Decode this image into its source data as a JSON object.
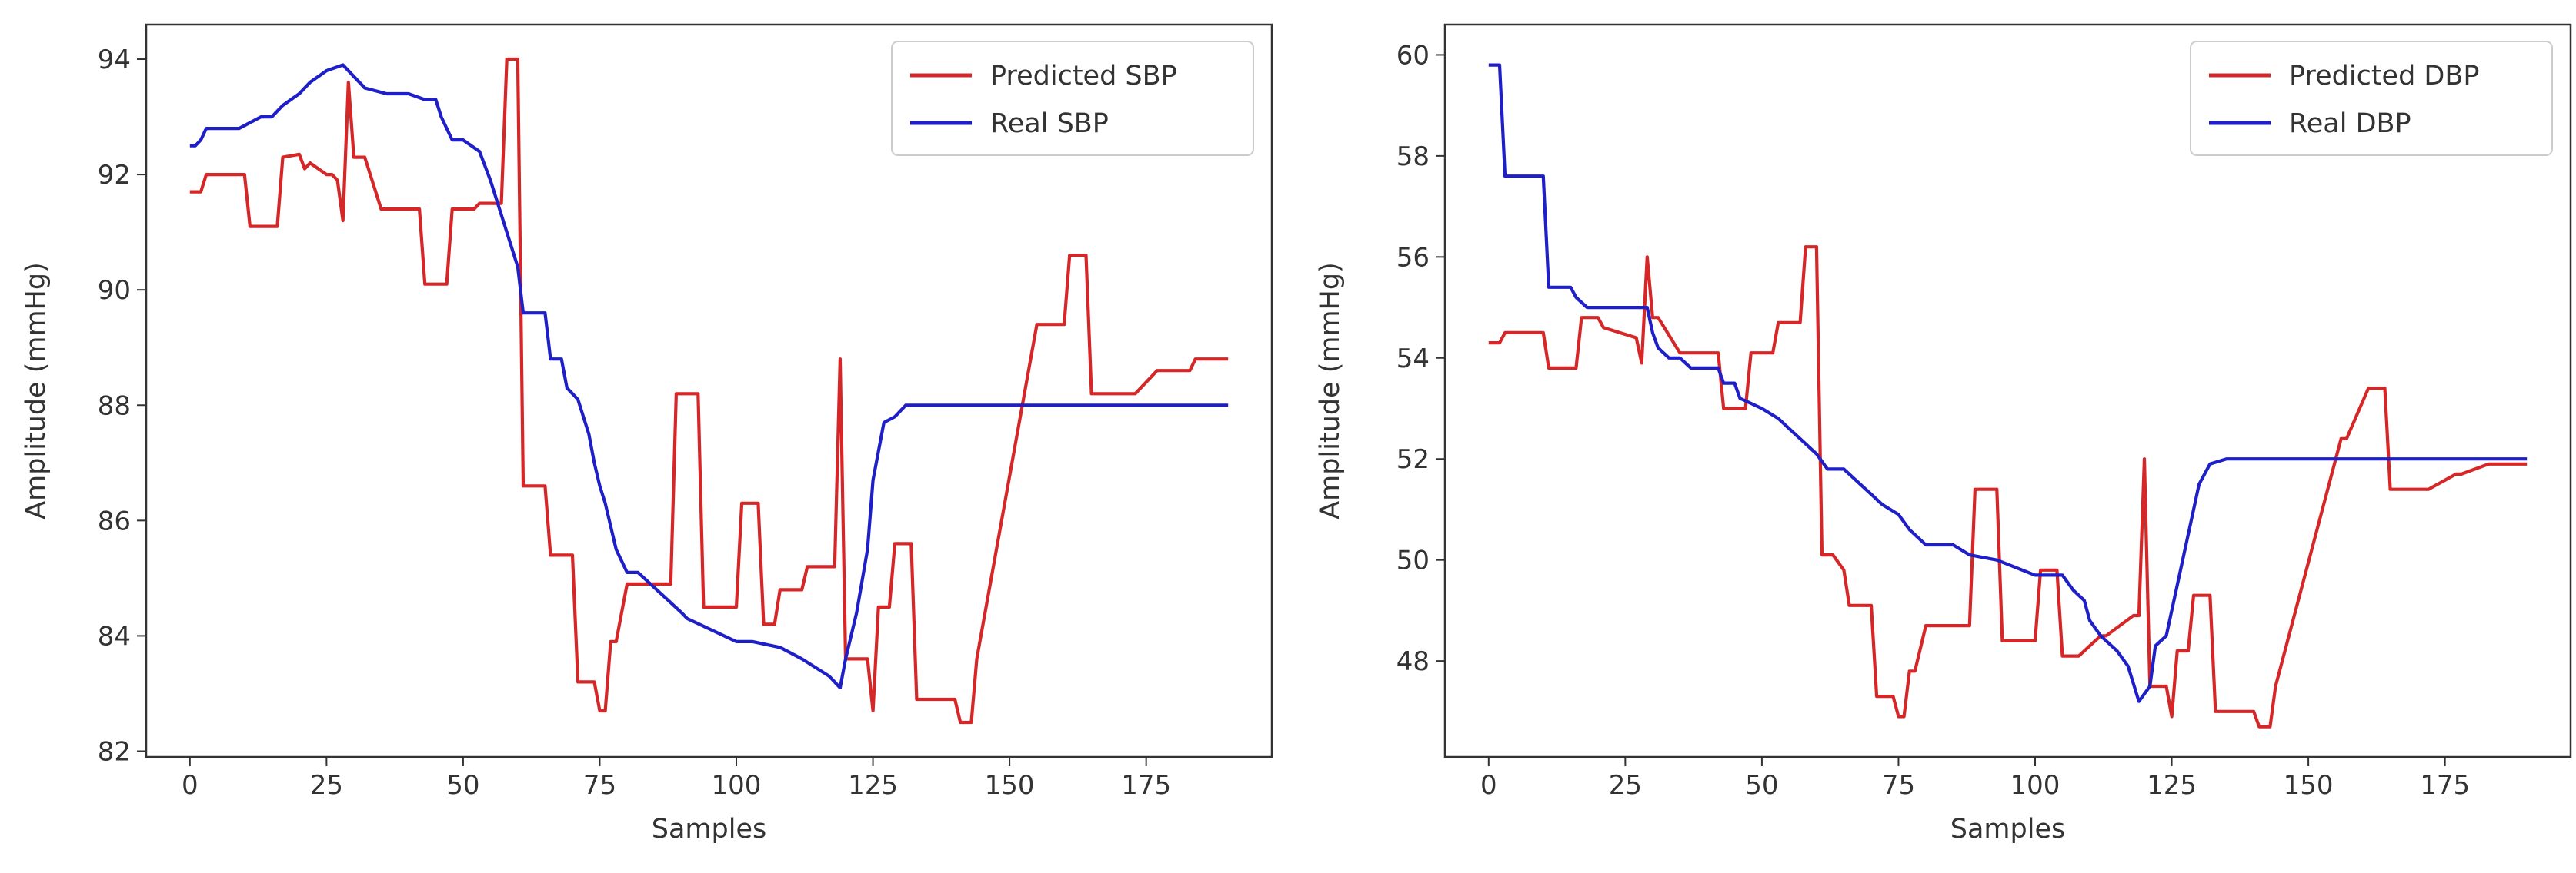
{
  "chart_data": [
    {
      "type": "line",
      "title": "",
      "xlabel": "Samples",
      "ylabel": "Amplitude (mmHg)",
      "xlim": [
        -8,
        198
      ],
      "ylim": [
        81.9,
        94.6
      ],
      "xticks": [
        0,
        25,
        50,
        75,
        100,
        125,
        150,
        175
      ],
      "yticks": [
        82,
        84,
        86,
        88,
        90,
        92,
        94
      ],
      "legend_position": "top-right",
      "series": [
        {
          "name": "Predicted SBP",
          "color": "#d62728",
          "x": [
            0,
            2,
            3,
            10,
            11,
            16,
            17,
            20,
            21,
            22,
            25,
            26,
            27,
            28,
            29,
            30,
            31,
            32,
            35,
            36,
            42,
            43,
            47,
            48,
            52,
            53,
            57,
            58,
            60,
            61,
            62,
            65,
            66,
            70,
            71,
            74,
            75,
            76,
            77,
            78,
            80,
            81,
            88,
            89,
            93,
            94,
            100,
            101,
            104,
            105,
            107,
            108,
            112,
            113,
            118,
            119,
            120,
            121,
            124,
            125,
            126,
            128,
            129,
            132,
            133,
            140,
            141,
            143,
            144,
            155,
            156,
            160,
            161,
            164,
            165,
            172,
            173,
            177,
            178,
            183,
            184,
            190
          ],
          "y": [
            91.7,
            91.7,
            92.0,
            92.0,
            91.1,
            91.1,
            92.3,
            92.35,
            92.1,
            92.2,
            92.0,
            92.0,
            91.9,
            91.2,
            93.6,
            92.3,
            92.3,
            92.3,
            91.4,
            91.4,
            91.4,
            90.1,
            90.1,
            91.4,
            91.4,
            91.5,
            91.5,
            94.0,
            94.0,
            86.6,
            86.6,
            86.6,
            85.4,
            85.4,
            83.2,
            83.2,
            82.7,
            82.7,
            83.9,
            83.9,
            84.9,
            84.9,
            84.9,
            88.2,
            88.2,
            84.5,
            84.5,
            86.3,
            86.3,
            84.2,
            84.2,
            84.8,
            84.8,
            85.2,
            85.2,
            88.8,
            83.6,
            83.6,
            83.6,
            82.7,
            84.5,
            84.5,
            85.6,
            85.6,
            82.9,
            82.9,
            82.5,
            82.5,
            83.6,
            89.4,
            89.4,
            89.4,
            90.6,
            90.6,
            88.2,
            88.2,
            88.2,
            88.6,
            88.6,
            88.6,
            88.8,
            88.8
          ]
        },
        {
          "name": "Real SBP",
          "color": "#1f1fc8",
          "x": [
            0,
            1,
            2,
            3,
            8,
            9,
            13,
            15,
            17,
            20,
            22,
            25,
            28,
            30,
            32,
            36,
            40,
            43,
            45,
            46,
            48,
            50,
            53,
            55,
            57,
            60,
            61,
            62,
            65,
            66,
            68,
            69,
            71,
            72,
            73,
            74,
            75,
            76,
            77,
            78,
            80,
            82,
            90,
            91,
            100,
            103,
            108,
            112,
            117,
            119,
            120,
            122,
            124,
            125,
            126,
            127,
            129,
            131,
            133,
            190
          ],
          "y": [
            92.5,
            92.5,
            92.6,
            92.8,
            92.8,
            92.8,
            93.0,
            93.0,
            93.2,
            93.4,
            93.6,
            93.8,
            93.9,
            93.7,
            93.5,
            93.4,
            93.4,
            93.3,
            93.3,
            93.0,
            92.6,
            92.6,
            92.4,
            91.9,
            91.3,
            90.4,
            89.6,
            89.6,
            89.6,
            88.8,
            88.8,
            88.3,
            88.1,
            87.8,
            87.5,
            87.0,
            86.6,
            86.3,
            85.9,
            85.5,
            85.1,
            85.1,
            84.4,
            84.3,
            83.9,
            83.9,
            83.8,
            83.6,
            83.3,
            83.1,
            83.6,
            84.4,
            85.5,
            86.7,
            87.2,
            87.7,
            87.8,
            88.0,
            88.0,
            88.0
          ]
        }
      ]
    },
    {
      "type": "line",
      "title": "",
      "xlabel": "Samples",
      "ylabel": "Amplitude (mmHg)",
      "xlim": [
        -8,
        198
      ],
      "ylim": [
        46.1,
        60.6
      ],
      "xticks": [
        0,
        25,
        50,
        75,
        100,
        125,
        150,
        175
      ],
      "yticks": [
        48,
        50,
        52,
        54,
        56,
        58,
        60
      ],
      "legend_position": "top-right",
      "series": [
        {
          "name": "Predicted DBP",
          "color": "#d62728",
          "x": [
            0,
            2,
            3,
            10,
            11,
            16,
            17,
            20,
            21,
            24,
            27,
            28,
            29,
            30,
            31,
            35,
            36,
            42,
            43,
            47,
            48,
            52,
            53,
            57,
            58,
            60,
            61,
            63,
            65,
            66,
            70,
            71,
            74,
            75,
            76,
            77,
            78,
            80,
            81,
            88,
            89,
            93,
            94,
            100,
            101,
            104,
            105,
            108,
            112,
            113,
            118,
            119,
            120,
            121,
            124,
            125,
            126,
            128,
            129,
            132,
            133,
            140,
            141,
            143,
            144,
            156,
            157,
            161,
            162,
            164,
            165,
            171,
            172,
            177,
            178,
            183,
            190
          ],
          "y": [
            54.3,
            54.3,
            54.5,
            54.5,
            53.8,
            53.8,
            54.8,
            54.8,
            54.6,
            54.5,
            54.4,
            53.9,
            56.0,
            54.8,
            54.8,
            54.1,
            54.1,
            54.1,
            53.0,
            53.0,
            54.1,
            54.1,
            54.7,
            54.7,
            56.2,
            56.2,
            50.1,
            50.1,
            49.8,
            49.1,
            49.1,
            47.3,
            47.3,
            46.9,
            46.9,
            47.8,
            47.8,
            48.7,
            48.7,
            48.7,
            51.4,
            51.4,
            48.4,
            48.4,
            49.8,
            49.8,
            48.1,
            48.1,
            48.5,
            48.5,
            48.9,
            48.9,
            52.0,
            47.5,
            47.5,
            46.9,
            48.2,
            48.2,
            49.3,
            49.3,
            47.0,
            47.0,
            46.7,
            46.7,
            47.5,
            52.4,
            52.4,
            53.4,
            53.4,
            53.4,
            51.4,
            51.4,
            51.4,
            51.7,
            51.7,
            51.9,
            51.9
          ]
        },
        {
          "name": "Real DBP",
          "color": "#1f1fc8",
          "x": [
            0,
            2,
            3,
            10,
            11,
            15,
            16,
            18,
            29,
            30,
            31,
            33,
            35,
            37,
            40,
            42,
            43,
            45,
            46,
            48,
            50,
            53,
            55,
            57,
            60,
            62,
            65,
            68,
            70,
            72,
            75,
            77,
            80,
            82,
            85,
            88,
            93,
            100,
            105,
            107,
            109,
            110,
            112,
            115,
            117,
            119,
            121,
            122,
            124,
            126,
            128,
            130,
            132,
            135,
            190
          ],
          "y": [
            59.8,
            59.8,
            57.6,
            57.6,
            55.4,
            55.4,
            55.2,
            55.0,
            55.0,
            54.5,
            54.2,
            54.0,
            54.0,
            53.8,
            53.8,
            53.8,
            53.5,
            53.5,
            53.2,
            53.1,
            53.0,
            52.8,
            52.6,
            52.4,
            52.1,
            51.8,
            51.8,
            51.5,
            51.3,
            51.1,
            50.9,
            50.6,
            50.3,
            50.3,
            50.3,
            50.1,
            50.0,
            49.7,
            49.7,
            49.4,
            49.2,
            48.8,
            48.5,
            48.2,
            47.9,
            47.2,
            47.5,
            48.3,
            48.5,
            49.5,
            50.5,
            51.5,
            51.9,
            52.0,
            52.0
          ]
        }
      ]
    }
  ]
}
